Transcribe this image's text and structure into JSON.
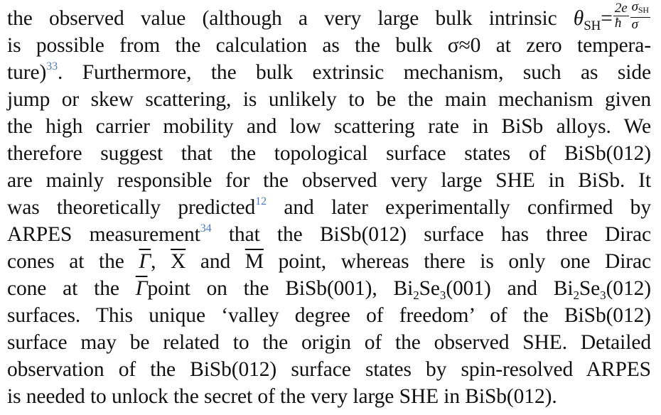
{
  "paragraph": {
    "l1a": "the observed value (although a very large bulk intrinsic ",
    "theta": "θ",
    "sh": "SH",
    "eq": "=",
    "f1num": "2e",
    "f1den": "ħ",
    "f2num": "σ",
    "f2numsub": "SH",
    "f2den": "σ",
    "l2": "is possible from the calculation as the bulk σ≈0 at zero tempera-",
    "l3a": "ture)",
    "ref33": "33",
    "l3b": ". Furthermore, the bulk extrinsic mechanism, such as side",
    "l4": "jump or skew scattering, is unlikely to be the main mechanism given",
    "l5": "the high carrier mobility and low scattering rate in BiSb alloys. We",
    "l6": "therefore suggest that the topological surface states of BiSb(012)",
    "l7": "are mainly responsible for the observed very large SHE in BiSb. It",
    "l8a": "was theoretically predicted",
    "ref12": "12",
    "l8b": " and later experimentally confirmed by",
    "l9a": "ARPES measurement",
    "ref34": "34",
    "l9b": " that the BiSb(012) surface has three Dirac",
    "l10a": "cones at the ",
    "gamma": "Γ",
    "l10b": ", ",
    "xpt": "X",
    "l10c": " and ",
    "mpt": "M",
    "l10d": " point, whereas there is only one Dirac",
    "l11a": "cone at the ",
    "gamma2": "Γ",
    "l11b": "point on the BiSb(001), Bi",
    "two": "2",
    "l11c": "Se",
    "three": "3",
    "l11d": "(001) and Bi",
    "l11e": "Se",
    "l11f": "(012)",
    "l12": "surfaces. This unique ‘valley degree of freedom’ of the BiSb(012)",
    "l13": "surface may be related to the origin of the observed SHE. Detailed",
    "l14": "observation of the BiSb(012) surface states by spin-resolved ARPES",
    "l15": "is needed to unlock the secret of the very large SHE in BiSb(012)."
  }
}
